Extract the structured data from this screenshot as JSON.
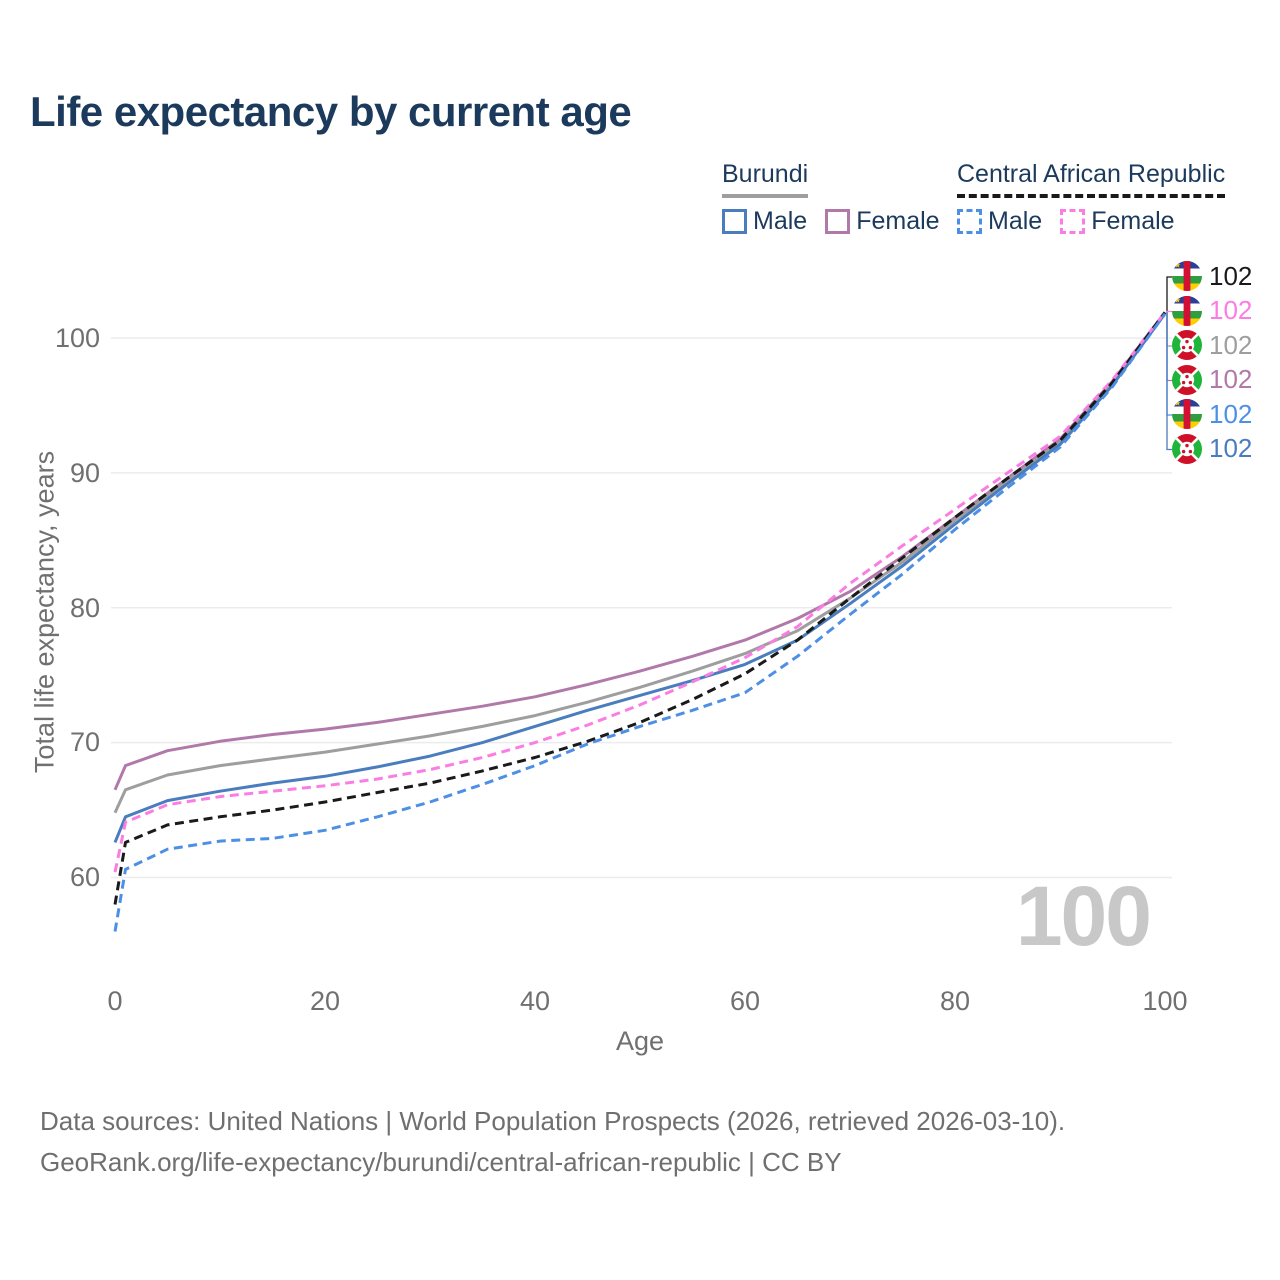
{
  "title": "Life expectancy by current age",
  "legend": {
    "groups": [
      {
        "name": "Burundi",
        "style": "solid",
        "underline_color": "#9e9e9e",
        "items": [
          {
            "label": "Male",
            "color": "#4a7dbd"
          },
          {
            "label": "Female",
            "color": "#b179a9"
          }
        ]
      },
      {
        "name": "Central African Republic",
        "style": "dashed",
        "underline_color": "#1a1a1a",
        "items": [
          {
            "label": "Male",
            "color": "#4e8fe6"
          },
          {
            "label": "Female",
            "color": "#fb7de4"
          }
        ]
      }
    ]
  },
  "watermark": "100",
  "footer": {
    "line1": "Data sources: United Nations | World Population Prospects (2026, retrieved 2026-03-10).",
    "line2": "GeoRank.org/life-expectancy/burundi/central-african-republic | CC BY"
  },
  "chart_data": {
    "type": "line",
    "title": "Life expectancy by current age",
    "xlabel": "Age",
    "ylabel": "Total life expectancy, years",
    "xlim": [
      0,
      100
    ],
    "ylim": [
      56,
      102
    ],
    "xticks": [
      0,
      20,
      40,
      60,
      80,
      100
    ],
    "yticks": [
      60,
      70,
      80,
      90,
      100
    ],
    "grid": "horizontal-only",
    "legend_position": "top-right",
    "x": [
      0,
      1,
      5,
      10,
      15,
      20,
      25,
      30,
      35,
      40,
      45,
      50,
      55,
      60,
      65,
      70,
      75,
      80,
      85,
      90,
      95,
      100
    ],
    "series": [
      {
        "id": "burundi-female",
        "name": "Burundi Female",
        "color": "#b179a9",
        "dash": false,
        "values": [
          66.5,
          68.3,
          69.4,
          70.1,
          70.6,
          71.0,
          71.5,
          72.1,
          72.7,
          73.4,
          74.3,
          75.3,
          76.4,
          77.6,
          79.2,
          81.2,
          83.8,
          86.7,
          89.6,
          92.5,
          96.8,
          101.9
        ]
      },
      {
        "id": "burundi-both",
        "name": "Burundi Both sexes",
        "color": "#9e9e9e",
        "dash": false,
        "values": [
          64.8,
          66.5,
          67.6,
          68.3,
          68.8,
          69.3,
          69.9,
          70.5,
          71.2,
          72.0,
          73.0,
          74.1,
          75.3,
          76.6,
          78.3,
          80.7,
          83.4,
          86.5,
          89.4,
          92.3,
          96.6,
          101.9
        ]
      },
      {
        "id": "burundi-male",
        "name": "Burundi Male",
        "color": "#4a7dbd",
        "dash": false,
        "values": [
          62.6,
          64.5,
          65.7,
          66.4,
          67.0,
          67.5,
          68.2,
          69.0,
          70.0,
          71.2,
          72.4,
          73.5,
          74.6,
          75.8,
          77.6,
          80.3,
          83.1,
          86.2,
          89.2,
          92.1,
          96.5,
          101.8
        ]
      },
      {
        "id": "car-female",
        "name": "Central African Republic Female",
        "color": "#fb7de4",
        "dash": true,
        "values": [
          60.4,
          64.1,
          65.4,
          66.0,
          66.4,
          66.8,
          67.3,
          68.0,
          68.9,
          70.0,
          71.3,
          72.8,
          74.5,
          76.3,
          78.6,
          81.8,
          84.6,
          87.3,
          90.0,
          92.7,
          96.9,
          101.9
        ]
      },
      {
        "id": "car-both",
        "name": "Central African Republic Both sexes",
        "color": "#1a1a1a",
        "dash": true,
        "values": [
          58.0,
          62.6,
          63.9,
          64.5,
          65.0,
          65.6,
          66.3,
          67.0,
          67.9,
          68.9,
          70.1,
          71.5,
          73.2,
          75.1,
          77.6,
          80.7,
          83.7,
          86.7,
          89.6,
          92.4,
          96.7,
          101.9
        ]
      },
      {
        "id": "car-male",
        "name": "Central African Republic Male",
        "color": "#4e8fe6",
        "dash": true,
        "values": [
          56.0,
          60.6,
          62.1,
          62.7,
          62.9,
          63.5,
          64.5,
          65.6,
          66.9,
          68.3,
          69.9,
          71.2,
          72.4,
          73.7,
          76.4,
          79.5,
          82.5,
          85.8,
          88.9,
          91.9,
          96.4,
          101.8
        ]
      }
    ],
    "end_labels": [
      {
        "flag": "central-african-republic",
        "value": "102",
        "color": "#1a1a1a"
      },
      {
        "flag": "central-african-republic",
        "value": "102",
        "color": "#fb7de4"
      },
      {
        "flag": "burundi",
        "value": "102",
        "color": "#9e9e9e"
      },
      {
        "flag": "burundi",
        "value": "102",
        "color": "#b179a9"
      },
      {
        "flag": "central-african-republic",
        "value": "102",
        "color": "#4e8fe6"
      },
      {
        "flag": "burundi",
        "value": "102",
        "color": "#4a7dbd"
      }
    ]
  }
}
